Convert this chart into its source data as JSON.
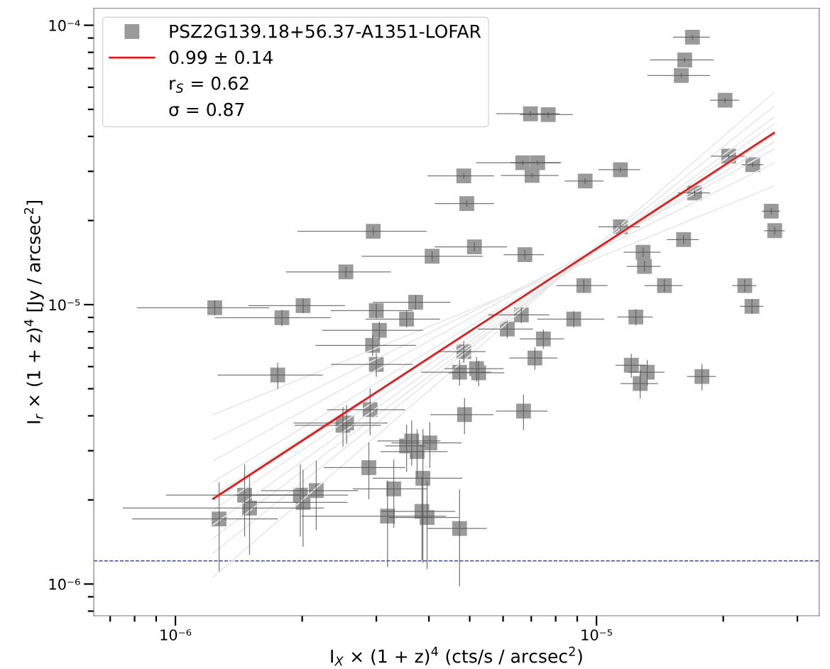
{
  "chart_data": {
    "type": "scatter",
    "log": "xy",
    "grid": false,
    "legend": "top left",
    "xlabel": "I$_{X}$ × (1 + z)$^{4}$ (cts/s / arcsec$^{2}$)",
    "ylabel": "I$_{r}$ × (1 + z)$^{4}$ [Jy / arcsec$^{2}$]",
    "xlim": [
      6.4e-07,
      3.38e-05
    ],
    "ylim": [
      7.7e-07,
      0.000115
    ],
    "xticks": [
      {
        "value": 1e-06,
        "label": "10⁻⁶"
      },
      {
        "value": 1e-05,
        "label": "10⁻⁵"
      }
    ],
    "yticks": [
      {
        "value": 1e-06,
        "label": "10⁻⁶"
      },
      {
        "value": 1e-05,
        "label": "10⁻⁵"
      },
      {
        "value": 0.0001,
        "label": "10⁻⁴"
      }
    ],
    "annotations": [
      "r$_{S}$ = 0.62",
      "σ = 0.87"
    ],
    "ref_lines": [
      {
        "axis": "y",
        "value": 1.21e-06,
        "color": "#3b3bff",
        "line_style": "dashed"
      }
    ],
    "series": [
      {
        "name": "PSZ2G139.18+56.37-A1351-LOFAR",
        "color": "#9a9a9a",
        "marker": "square",
        "x": [
          1.69e-05,
          1.62e-05,
          1.59e-05,
          2.02e-05,
          6.97e-06,
          7.68e-06,
          4.84e-06,
          6.68e-06,
          7.25e-06,
          7.03e-06,
          9.4e-06,
          1.14e-05,
          2.06e-05,
          2.35e-05,
          1.71e-05,
          4.92e-06,
          2.95e-06,
          1.14e-05,
          4.07e-06,
          5.13e-06,
          6.76e-06,
          2.54e-06,
          2.6e-05,
          2.65e-05,
          1.61e-05,
          1.29e-05,
          1.3e-05,
          9.33e-06,
          1.45e-05,
          2.25e-05,
          2.34e-05,
          1.24e-06,
          2.01e-06,
          1.79e-06,
          3e-06,
          3.72e-06,
          3.54e-06,
          6.63e-06,
          8.83e-06,
          1.24e-05,
          3.05e-06,
          6.14e-06,
          7.48e-06,
          2.94e-06,
          4.84e-06,
          7.14e-06,
          3e-06,
          1.75e-06,
          4.73e-06,
          5.19e-06,
          5.25e-06,
          1.21e-05,
          1.32e-05,
          1.27e-05,
          1.78e-05,
          2.9e-06,
          2.5e-06,
          2.55e-06,
          4.86e-06,
          6.71e-06,
          3.64e-06,
          3.54e-06,
          4.02e-06,
          3.75e-06,
          2.88e-06,
          3.87e-06,
          3.3e-06,
          2.16e-06,
          1.46e-06,
          1.98e-06,
          2.01e-06,
          1.5e-06,
          3.85e-06,
          3.96e-06,
          3.19e-06,
          1.27e-06,
          4.73e-06
        ],
        "values": [
          9.06e-05,
          7.51e-05,
          6.61e-05,
          5.39e-05,
          4.82e-05,
          4.79e-05,
          2.89e-05,
          3.22e-05,
          3.22e-05,
          2.9e-05,
          2.77e-05,
          3.04e-05,
          3.4e-05,
          3.17e-05,
          2.51e-05,
          2.3e-05,
          1.83e-05,
          1.9e-05,
          1.49e-05,
          1.61e-05,
          1.51e-05,
          1.31e-05,
          2.16e-05,
          1.84e-05,
          1.71e-05,
          1.54e-05,
          1.37e-05,
          1.17e-05,
          1.17e-05,
          1.17e-05,
          9.86e-06,
          9.75e-06,
          9.92e-06,
          8.98e-06,
          9.52e-06,
          1.02e-05,
          8.88e-06,
          9.19e-06,
          8.88e-06,
          9.03e-06,
          8.09e-06,
          8.18e-06,
          7.54e-06,
          7.15e-06,
          6.79e-06,
          6.44e-06,
          6.11e-06,
          5.6e-06,
          5.73e-06,
          5.9e-06,
          5.7e-06,
          6.07e-06,
          5.73e-06,
          5.22e-06,
          5.53e-06,
          4.21e-06,
          3.7e-06,
          3.77e-06,
          4.04e-06,
          4.16e-06,
          3.25e-06,
          3.12e-06,
          3.2e-06,
          2.98e-06,
          2.61e-06,
          2.39e-06,
          2.19e-06,
          2.16e-06,
          2.08e-06,
          2.08e-06,
          1.96e-06,
          1.87e-06,
          1.82e-06,
          1.73e-06,
          1.75e-06,
          1.71e-06,
          1.58e-06
        ],
        "xerrors": [
          1.7e-06,
          2.8e-06,
          2.7e-06,
          1.6e-06,
          1.2e-06,
          1.1e-06,
          8.7e-07,
          1.5e-06,
          1e-06,
          1.1e-06,
          1e-06,
          1.3e-06,
          1.9e-06,
          1.4e-06,
          1.5e-06,
          7.9e-07,
          1e-06,
          1.3e-06,
          1.3e-06,
          1e-06,
          7.4e-07,
          7.1e-07,
          1.3e-06,
          1.5e-06,
          1.4e-06,
          1.3e-06,
          1.2e-06,
          1.3e-06,
          1.5e-06,
          1.5e-06,
          1.5e-06,
          4.3e-07,
          5.2e-07,
          5.5e-07,
          6.6e-07,
          7.8e-07,
          7.1e-07,
          1.1e-06,
          1.6e-06,
          1.2e-06,
          8.2e-07,
          9.2e-07,
          9e-07,
          7.9e-07,
          6.1e-07,
          9.3e-07,
          6.6e-07,
          4.9e-07,
          9e-07,
          8.3e-07,
          7.9e-07,
          1e-06,
          1.3e-06,
          1.3e-06,
          1.4e-06,
          6.1e-07,
          5.8e-07,
          6.4e-07,
          8.3e-07,
          9.4e-07,
          6.2e-07,
          3.9e-07,
          7.6e-07,
          6.8e-07,
          6.3e-07,
          9.3e-07,
          6.6e-07,
          5.6e-07,
          5.1e-07,
          5.9e-07,
          5.5e-07,
          7.5e-07,
          7.7e-07,
          7.5e-07,
          1.2e-06,
          4.8e-07,
          7.6e-07
        ],
        "errors": [
          1.8e-06,
          1.5e-06,
          1.3e-06,
          1.1e-06,
          1e-06,
          1e-06,
          6e-07,
          6e-07,
          6e-07,
          6e-07,
          6e-07,
          6e-07,
          6e-07,
          6e-07,
          6e-07,
          6e-07,
          6e-07,
          6e-07,
          6e-07,
          6e-07,
          6e-07,
          6e-07,
          6e-07,
          6e-07,
          6e-07,
          6e-07,
          6e-07,
          6e-07,
          6e-07,
          6e-07,
          6e-07,
          6e-07,
          6e-07,
          6e-07,
          6e-07,
          6e-07,
          6e-07,
          6e-07,
          6e-07,
          6e-07,
          6e-07,
          6e-07,
          6e-07,
          6e-07,
          6e-07,
          6e-07,
          6e-07,
          6e-07,
          6e-07,
          6e-07,
          6e-07,
          6e-07,
          6e-07,
          6e-07,
          6e-07,
          8e-07,
          6e-07,
          6e-07,
          6e-07,
          6e-07,
          6e-07,
          6e-07,
          6e-07,
          6e-07,
          6e-07,
          1.2e-06,
          6e-07,
          6e-07,
          6e-07,
          6e-07,
          6e-07,
          6e-07,
          6e-07,
          6e-07,
          6e-07,
          6e-07,
          6e-07
        ]
      },
      {
        "type": "line",
        "color": "#e8e8e8",
        "x": [
          1.23e-06,
          2.64e-05
        ],
        "values": [
          1.06e-06,
          5.74e-05
        ]
      },
      {
        "type": "line",
        "color": "#e8e8e8",
        "x": [
          1.23e-06,
          2.64e-05
        ],
        "values": [
          1.29e-06,
          5.13e-05
        ]
      },
      {
        "type": "line",
        "color": "#e8e8e8",
        "x": [
          1.23e-06,
          2.64e-05
        ],
        "values": [
          1.46e-06,
          4.69e-05
        ]
      },
      {
        "type": "line",
        "color": "#e8e8e8",
        "x": [
          1.23e-06,
          2.64e-05
        ],
        "values": [
          1.63e-06,
          4.43e-05
        ]
      },
      {
        "type": "line",
        "color": "#e8e8e8",
        "x": [
          1.23e-06,
          2.64e-05
        ],
        "values": [
          1.84e-06,
          4.17e-05
        ]
      },
      {
        "type": "line",
        "color": "#e8e8e8",
        "x": [
          1.23e-06,
          2.64e-05
        ],
        "values": [
          2.07e-06,
          4.05e-05
        ]
      },
      {
        "type": "line",
        "color": "#e8e8e8",
        "x": [
          1.23e-06,
          2.64e-05
        ],
        "values": [
          2.32e-06,
          3.82e-05
        ]
      },
      {
        "type": "line",
        "color": "#e8e8e8",
        "x": [
          1.23e-06,
          2.64e-05
        ],
        "values": [
          2.76e-06,
          3.6e-05
        ]
      },
      {
        "type": "line",
        "color": "#e8e8e8",
        "x": [
          1.23e-06,
          2.64e-05
        ],
        "values": [
          3.3e-06,
          3.21e-05
        ]
      },
      {
        "type": "line",
        "color": "#e8e8e8",
        "x": [
          1.23e-06,
          2.64e-05
        ],
        "values": [
          4.04e-06,
          2.66e-05
        ]
      },
      {
        "type": "line",
        "name": "0.99 ± 0.14",
        "color": "#e31a1c",
        "x": [
          1.23e-06,
          2.64e-05
        ],
        "values": [
          2.02e-06,
          4.12e-05
        ]
      }
    ]
  }
}
